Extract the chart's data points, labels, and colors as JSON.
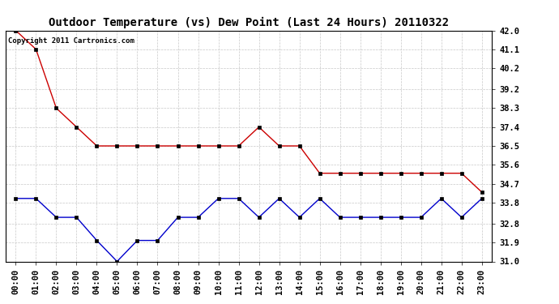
{
  "title": "Outdoor Temperature (vs) Dew Point (Last 24 Hours) 20110322",
  "copyright_text": "Copyright 2011 Cartronics.com",
  "x_labels": [
    "00:00",
    "01:00",
    "02:00",
    "03:00",
    "04:00",
    "05:00",
    "06:00",
    "07:00",
    "08:00",
    "09:00",
    "10:00",
    "11:00",
    "12:00",
    "13:00",
    "14:00",
    "15:00",
    "16:00",
    "17:00",
    "18:00",
    "19:00",
    "20:00",
    "21:00",
    "22:00",
    "23:00"
  ],
  "temp_data": [
    42.0,
    41.1,
    38.3,
    37.4,
    36.5,
    36.5,
    36.5,
    36.5,
    36.5,
    36.5,
    36.5,
    36.5,
    37.4,
    36.5,
    36.5,
    35.2,
    35.2,
    35.2,
    35.2,
    35.2,
    35.2,
    35.2,
    35.2,
    34.3
  ],
  "dew_data": [
    34.0,
    34.0,
    33.1,
    33.1,
    32.0,
    31.0,
    32.0,
    32.0,
    33.1,
    33.1,
    34.0,
    34.0,
    33.1,
    34.0,
    33.1,
    34.0,
    33.1,
    33.1,
    33.1,
    33.1,
    33.1,
    34.0,
    33.1,
    34.0
  ],
  "temp_color": "#cc0000",
  "dew_color": "#0000cc",
  "bg_color": "#ffffff",
  "plot_bg_color": "#ffffff",
  "grid_color": "#c8c8c8",
  "ylim_min": 31.0,
  "ylim_max": 42.0,
  "yticks": [
    31.0,
    31.9,
    32.8,
    33.8,
    34.7,
    35.6,
    36.5,
    37.4,
    38.3,
    39.2,
    40.2,
    41.1,
    42.0
  ],
  "title_fontsize": 10,
  "tick_fontsize": 7.5,
  "copyright_fontsize": 6.5
}
